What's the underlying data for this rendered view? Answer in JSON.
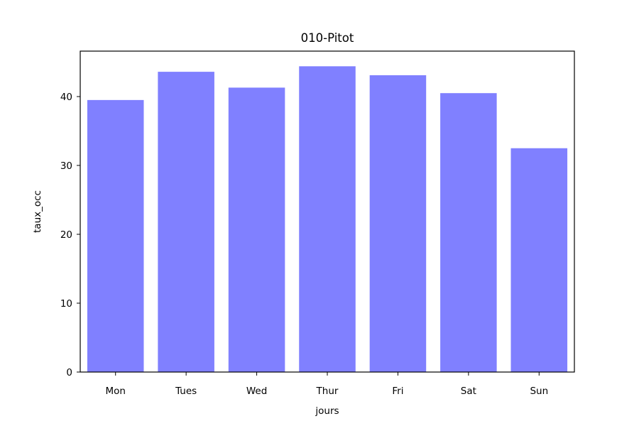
{
  "chart_data": {
    "type": "bar",
    "title": "010-Pitot",
    "xlabel": "jours",
    "ylabel": "taux_occ",
    "categories": [
      "Mon",
      "Tues",
      "Wed",
      "Thur",
      "Fri",
      "Sat",
      "Sun"
    ],
    "values": [
      39.5,
      43.6,
      41.3,
      44.4,
      43.1,
      40.5,
      32.5
    ],
    "ylim": [
      0,
      46.6
    ],
    "yticks": [
      0,
      10,
      20,
      30,
      40
    ],
    "grid": false,
    "legend": "none",
    "bar_color": "#8080ff"
  }
}
